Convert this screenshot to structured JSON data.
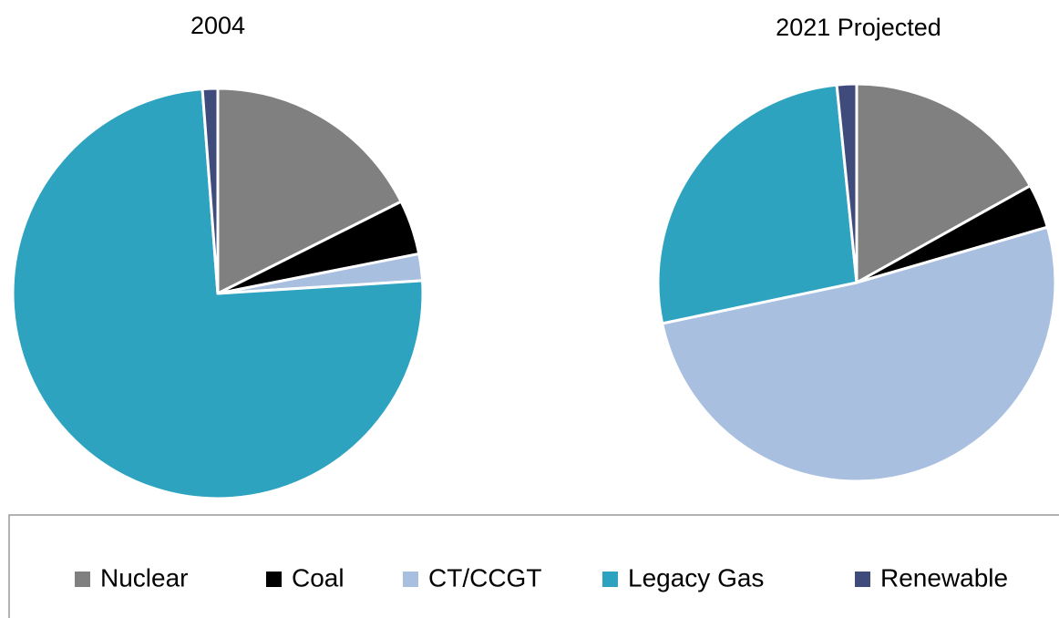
{
  "chart_data": [
    {
      "type": "pie",
      "title": "2004",
      "categories": [
        "Nuclear",
        "Coal",
        "CT/CCGT",
        "Legacy Gas",
        "Renewable"
      ],
      "values": [
        17.6,
        4.3,
        2.1,
        74.8,
        1.2
      ],
      "colors": [
        "#808080",
        "#000000",
        "#a9bfe0",
        "#2ea3c0",
        "#3f4c7b"
      ]
    },
    {
      "type": "pie",
      "title": "2021 Projected",
      "categories": [
        "Nuclear",
        "Coal",
        "CT/CCGT",
        "Legacy Gas",
        "Renewable"
      ],
      "values": [
        16.9,
        3.6,
        51.2,
        26.7,
        1.6
      ],
      "colors": [
        "#808080",
        "#000000",
        "#a9bfe0",
        "#2ea3c0",
        "#3f4c7b"
      ]
    }
  ]
}
